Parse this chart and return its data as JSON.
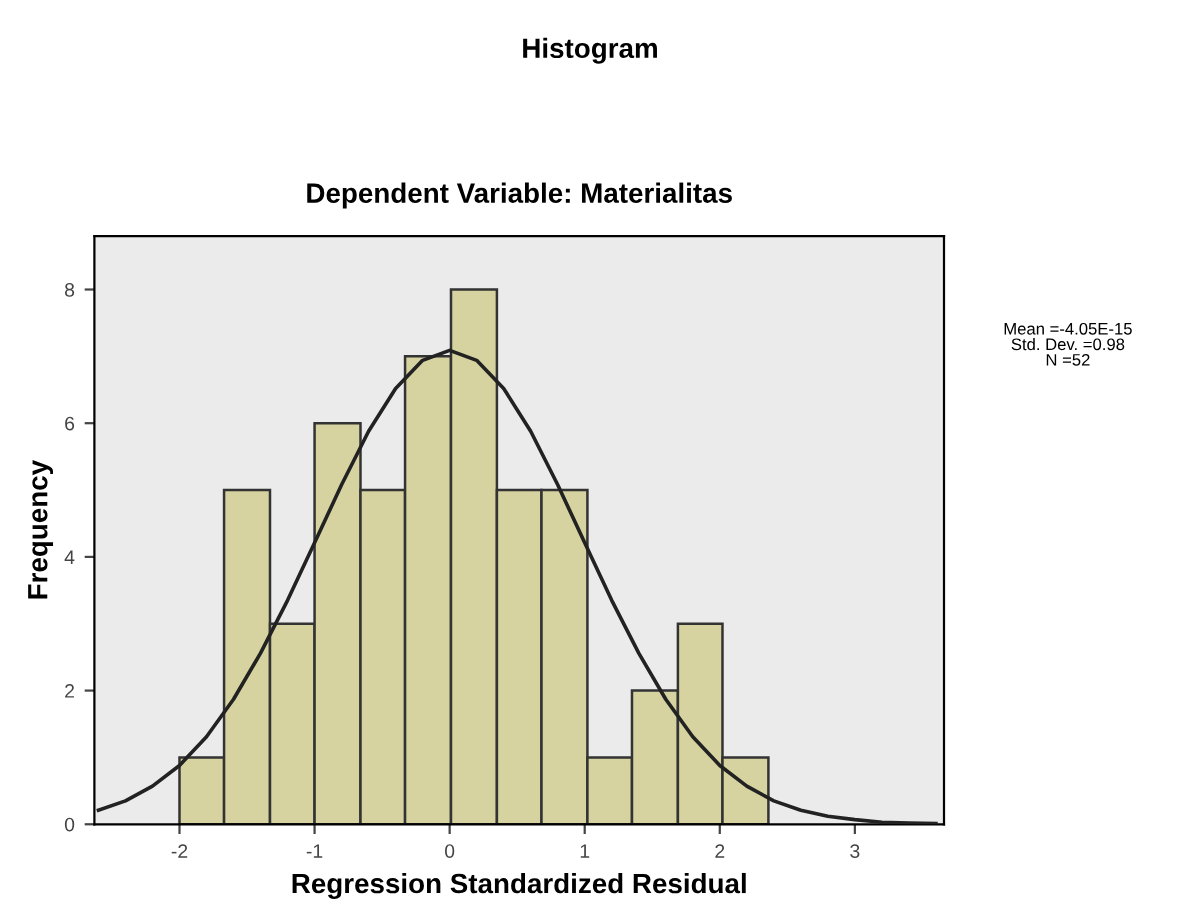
{
  "chart_data": {
    "type": "histogram",
    "title": "Histogram",
    "subtitle": "Dependent Variable: Materialitas",
    "xlabel": "Regression Standardized Residual",
    "ylabel": "Frequency",
    "bins": [
      -2,
      -1.67,
      -1.33,
      -1,
      -0.66,
      -0.33,
      0.01,
      0.35,
      0.68,
      1.02,
      1.35,
      1.69,
      2.02,
      2.36
    ],
    "series": [
      {
        "color": "#d6d3a0",
        "values": [
          1,
          5,
          3,
          6,
          5,
          7,
          8,
          5,
          5,
          1,
          2,
          3,
          1
        ]
      },
      {
        "type": "line",
        "color": "#222222",
        "x": [
          -2.6,
          -2.4,
          -2.2,
          -2.0,
          -1.8,
          -1.6,
          -1.4,
          -1.2,
          -1.0,
          -0.8,
          -0.6,
          -0.4,
          -0.2,
          0,
          0.2,
          0.4,
          0.6,
          0.8,
          1.0,
          1.2,
          1.4,
          1.6,
          1.8,
          2.0,
          2.2,
          2.4,
          2.6,
          2.8,
          3.0,
          3.2,
          3.4,
          3.6
        ],
        "values": [
          0.21,
          0.35,
          0.57,
          0.88,
          1.31,
          1.87,
          2.56,
          3.35,
          4.21,
          5.08,
          5.88,
          6.52,
          6.94,
          7.09,
          6.94,
          6.52,
          5.88,
          5.08,
          4.21,
          3.35,
          2.56,
          1.87,
          1.31,
          0.88,
          0.57,
          0.35,
          0.21,
          0.12,
          0.07,
          0.03,
          0.02,
          0.01
        ]
      }
    ],
    "xlim": [
      -2.63,
      3.66
    ],
    "ylim": [
      0,
      8.8
    ],
    "xticks": [
      -2,
      -1,
      0,
      1,
      2,
      3
    ],
    "yticks": [
      0,
      2,
      4,
      6,
      8
    ],
    "grid": false,
    "legend": false,
    "annotations": [
      "Mean =-4.05E-15\nStd. Dev. =0.98\nN =52"
    ]
  }
}
